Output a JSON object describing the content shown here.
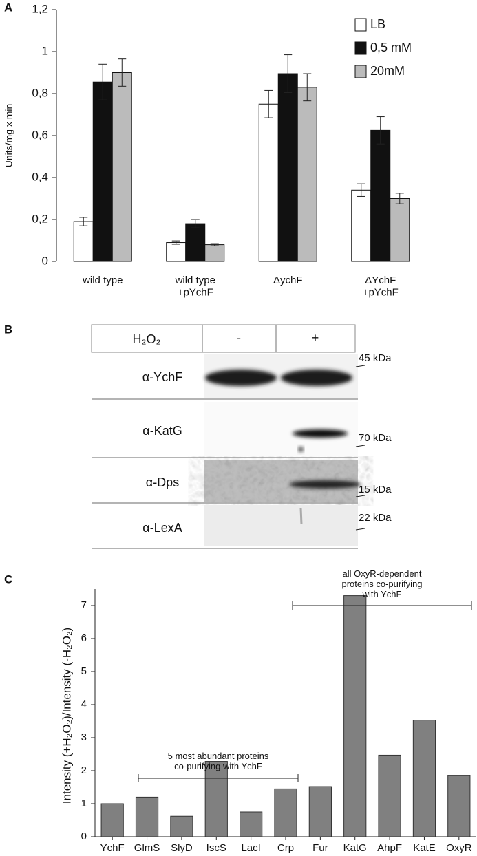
{
  "chart_data": [
    {
      "type": "bar",
      "panel_label": "A",
      "ylabel": "Units/mg x min",
      "categories": [
        "wild type",
        "wild type\n+pYchF",
        "ΔychF",
        "ΔYchF\n+pYchF"
      ],
      "series": [
        {
          "name": "LB",
          "color": "#ffffff",
          "values": [
            0.19,
            0.09,
            0.75,
            0.34
          ],
          "errors": [
            0.02,
            0.008,
            0.065,
            0.03
          ]
        },
        {
          "name": "0,5 mM",
          "color": "#111111",
          "values": [
            0.855,
            0.18,
            0.895,
            0.625
          ],
          "errors": [
            0.085,
            0.02,
            0.09,
            0.065
          ]
        },
        {
          "name": "20mM",
          "color": "#bbbbbb",
          "values": [
            0.9,
            0.08,
            0.83,
            0.3
          ],
          "errors": [
            0.065,
            0.005,
            0.065,
            0.025
          ]
        }
      ],
      "ylim": [
        0,
        1.2
      ],
      "yticks": [
        0,
        {
          "value": 0.2,
          "label": "0,2"
        },
        {
          "value": 0.4,
          "label": "0,4"
        },
        {
          "value": 0.6,
          "label": "0,6"
        },
        {
          "value": 0.8,
          "label": "0,8"
        },
        1,
        {
          "value": 1.2,
          "label": "1,2"
        }
      ],
      "legend": "top-right",
      "grid": false
    },
    {
      "type": "bar",
      "panel_label": "C",
      "ylabel": "Intensity (+H₂O₂)/Intensity (-H₂O₂)",
      "categories": [
        "YchF",
        "GlmS",
        "SlyD",
        "IscS",
        "LacI",
        "Crp",
        "Fur",
        "KatG",
        "AhpF",
        "KatE",
        "OxyR"
      ],
      "values": [
        1.0,
        1.2,
        0.62,
        2.28,
        0.75,
        1.45,
        1.52,
        7.3,
        2.47,
        3.53,
        1.85
      ],
      "color": "#808080",
      "ylim": [
        0,
        7.5
      ],
      "yticks": [
        0,
        1,
        2,
        3,
        4,
        5,
        6,
        7
      ],
      "grid": false,
      "annotations": [
        "5 most abundant proteins\nco-purifying with YchF",
        "all OxyR-dependent\nproteins co-purifying\nwith YchF"
      ]
    }
  ],
  "blot": {
    "panel_label": "B",
    "header": [
      "H₂O₂",
      "-",
      "+"
    ],
    "rows": [
      {
        "label": "α-YchF",
        "marker": "45 kDa"
      },
      {
        "label": "α-KatG",
        "marker": "70 kDa"
      },
      {
        "label": "α-Dps",
        "marker": "15 kDa"
      },
      {
        "label": "α-LexA",
        "marker": "22 kDa"
      }
    ]
  }
}
